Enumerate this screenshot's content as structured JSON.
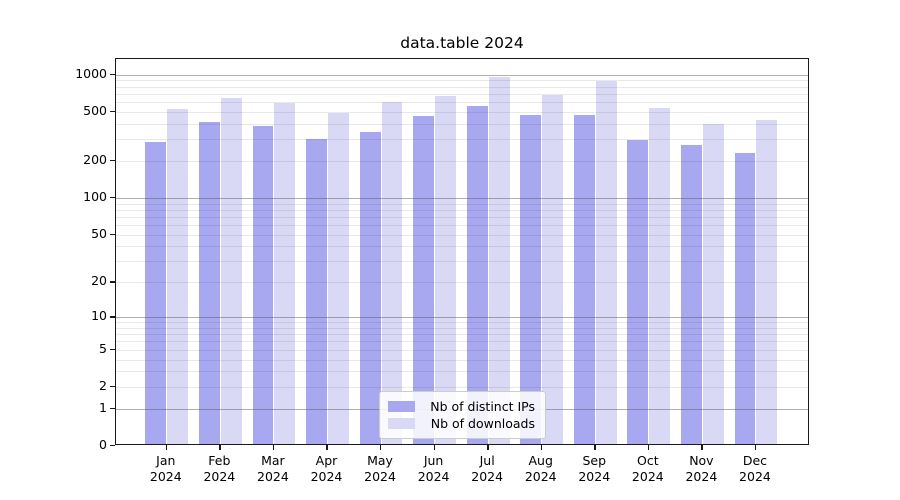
{
  "title": "data.table 2024",
  "legend": {
    "items": [
      {
        "label": "Nb of distinct IPs",
        "color": "#a8a8f1"
      },
      {
        "label": "Nb of downloads",
        "color": "#d9d9f6"
      }
    ]
  },
  "axes": {
    "yticks": [
      0,
      1,
      2,
      5,
      10,
      20,
      50,
      100,
      200,
      500,
      1000
    ],
    "x_year": "2024"
  },
  "chart_data": {
    "type": "bar",
    "title": "data.table 2024",
    "scale": "log1p",
    "ylim": [
      0,
      1340
    ],
    "grid": "on",
    "legend_position": "bottom-center",
    "categories": [
      "Jan",
      "Feb",
      "Mar",
      "Apr",
      "May",
      "Jun",
      "Jul",
      "Aug",
      "Sep",
      "Oct",
      "Nov",
      "Dec"
    ],
    "category_year": "2024",
    "yticks": [
      0,
      1,
      2,
      5,
      10,
      20,
      50,
      100,
      200,
      500,
      1000
    ],
    "series": [
      {
        "name": "Nb of distinct IPs",
        "color": "#a8a8f1",
        "values": [
          275,
          400,
          370,
          288,
          332,
          444,
          536,
          453,
          453,
          284,
          259,
          224
        ]
      },
      {
        "name": "Nb of downloads",
        "color": "#d9d9f6",
        "values": [
          505,
          625,
          573,
          473,
          580,
          645,
          928,
          657,
          855,
          520,
          383,
          418
        ]
      }
    ]
  }
}
